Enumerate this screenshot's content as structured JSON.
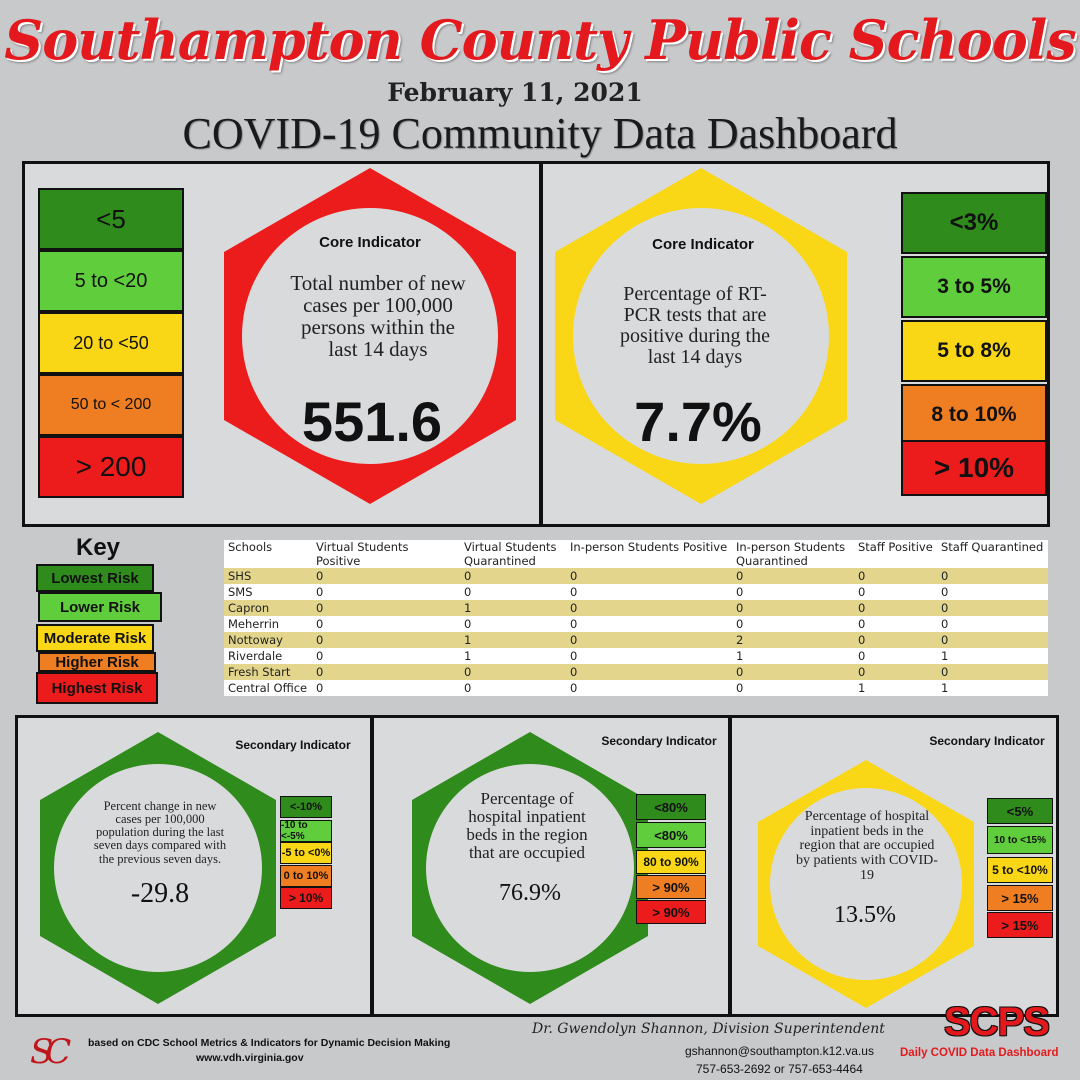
{
  "header": {
    "title": "Southampton County Public Schools",
    "date": "February 11, 2021",
    "subtitle": "COVID-19 Community Data Dashboard"
  },
  "core1": {
    "label": "Core Indicator",
    "description": "Total number of new cases per 100,000 persons within the last 14 days",
    "value": "551.6",
    "ranges": [
      "<5",
      "5 to  <20",
      "20 to <50",
      "50 to < 200",
      "> 200"
    ]
  },
  "core2": {
    "label": "Core Indicator",
    "description": "Percentage of RT-PCR tests that are positive during the last 14 days",
    "value": "7.7%",
    "ranges": [
      "<3%",
      "3 to 5%",
      "5 to 8%",
      "8 to 10%",
      "> 10%"
    ]
  },
  "key": {
    "title": "Key",
    "items": [
      "Lowest Risk",
      "Lower Risk",
      "Moderate Risk",
      "Higher Risk",
      "Highest Risk"
    ]
  },
  "table": {
    "headers": [
      "Schools",
      "Virtual Students Positive",
      "Virtual Students Quarantined",
      "In-person Students Positive",
      "In-person Students Quarantined",
      "Staff Positive",
      "Staff Quarantined"
    ],
    "rows": [
      [
        "SHS",
        "0",
        "0",
        "0",
        "0",
        "0",
        "0"
      ],
      [
        "SMS",
        "0",
        "0",
        "0",
        "0",
        "0",
        "0"
      ],
      [
        "Capron",
        "0",
        "1",
        "0",
        "0",
        "0",
        "0"
      ],
      [
        "Meherrin",
        "0",
        "0",
        "0",
        "0",
        "0",
        "0"
      ],
      [
        "Nottoway",
        "0",
        "1",
        "0",
        "2",
        "0",
        "0"
      ],
      [
        "Riverdale",
        "0",
        "1",
        "0",
        "1",
        "0",
        "1"
      ],
      [
        "Fresh Start",
        "0",
        "0",
        "0",
        "0",
        "0",
        "0"
      ],
      [
        "Central Office",
        "0",
        "0",
        "0",
        "0",
        "1",
        "1"
      ]
    ]
  },
  "sec1": {
    "label": "Secondary Indicator",
    "description": "Percent change in new cases per 100,000 population during the last seven days compared with the previous seven days.",
    "value": "-29.8",
    "ranges": [
      "<-10%",
      "-10 to <-5%",
      "-5 to <0%",
      "0 to 10%",
      "> 10%"
    ]
  },
  "sec2": {
    "label": "Secondary Indicator",
    "description": "Percentage of hospital inpatient beds in the region that are occupied",
    "value": "76.9%",
    "ranges": [
      "<80%",
      "<80%",
      "80 to 90%",
      "> 90%",
      "> 90%"
    ]
  },
  "sec3": {
    "label": "Secondary Indicator",
    "description": "Percentage of hospital inpatient beds in the region that are occupied by patients with COVID-19",
    "value": "13.5%",
    "ranges": [
      "<5%",
      "10 to <15%",
      "5 to <10%",
      "> 15%",
      "> 15%"
    ]
  },
  "footer": {
    "source_line1": "based on CDC School Metrics & Indicators for Dynamic Decision Making",
    "source_line2": "www.vdh.virginia.gov",
    "superintendent": "Dr. Gwendolyn Shannon, Division Superintendent",
    "email": "gshannon@southampton.k12.va.us",
    "phone": "757-653-2692 or 757-653-4464",
    "logo_letters": "SC",
    "scps": "SCPS",
    "scps_caption": "Daily COVID Data Dashboard"
  },
  "colors": {
    "dark_green": "#2f8b1c",
    "light_green": "#5fcd3c",
    "yellow": "#f9d716",
    "orange": "#ef7d22",
    "red": "#ec1c1c",
    "title_red": "#e3191d"
  }
}
